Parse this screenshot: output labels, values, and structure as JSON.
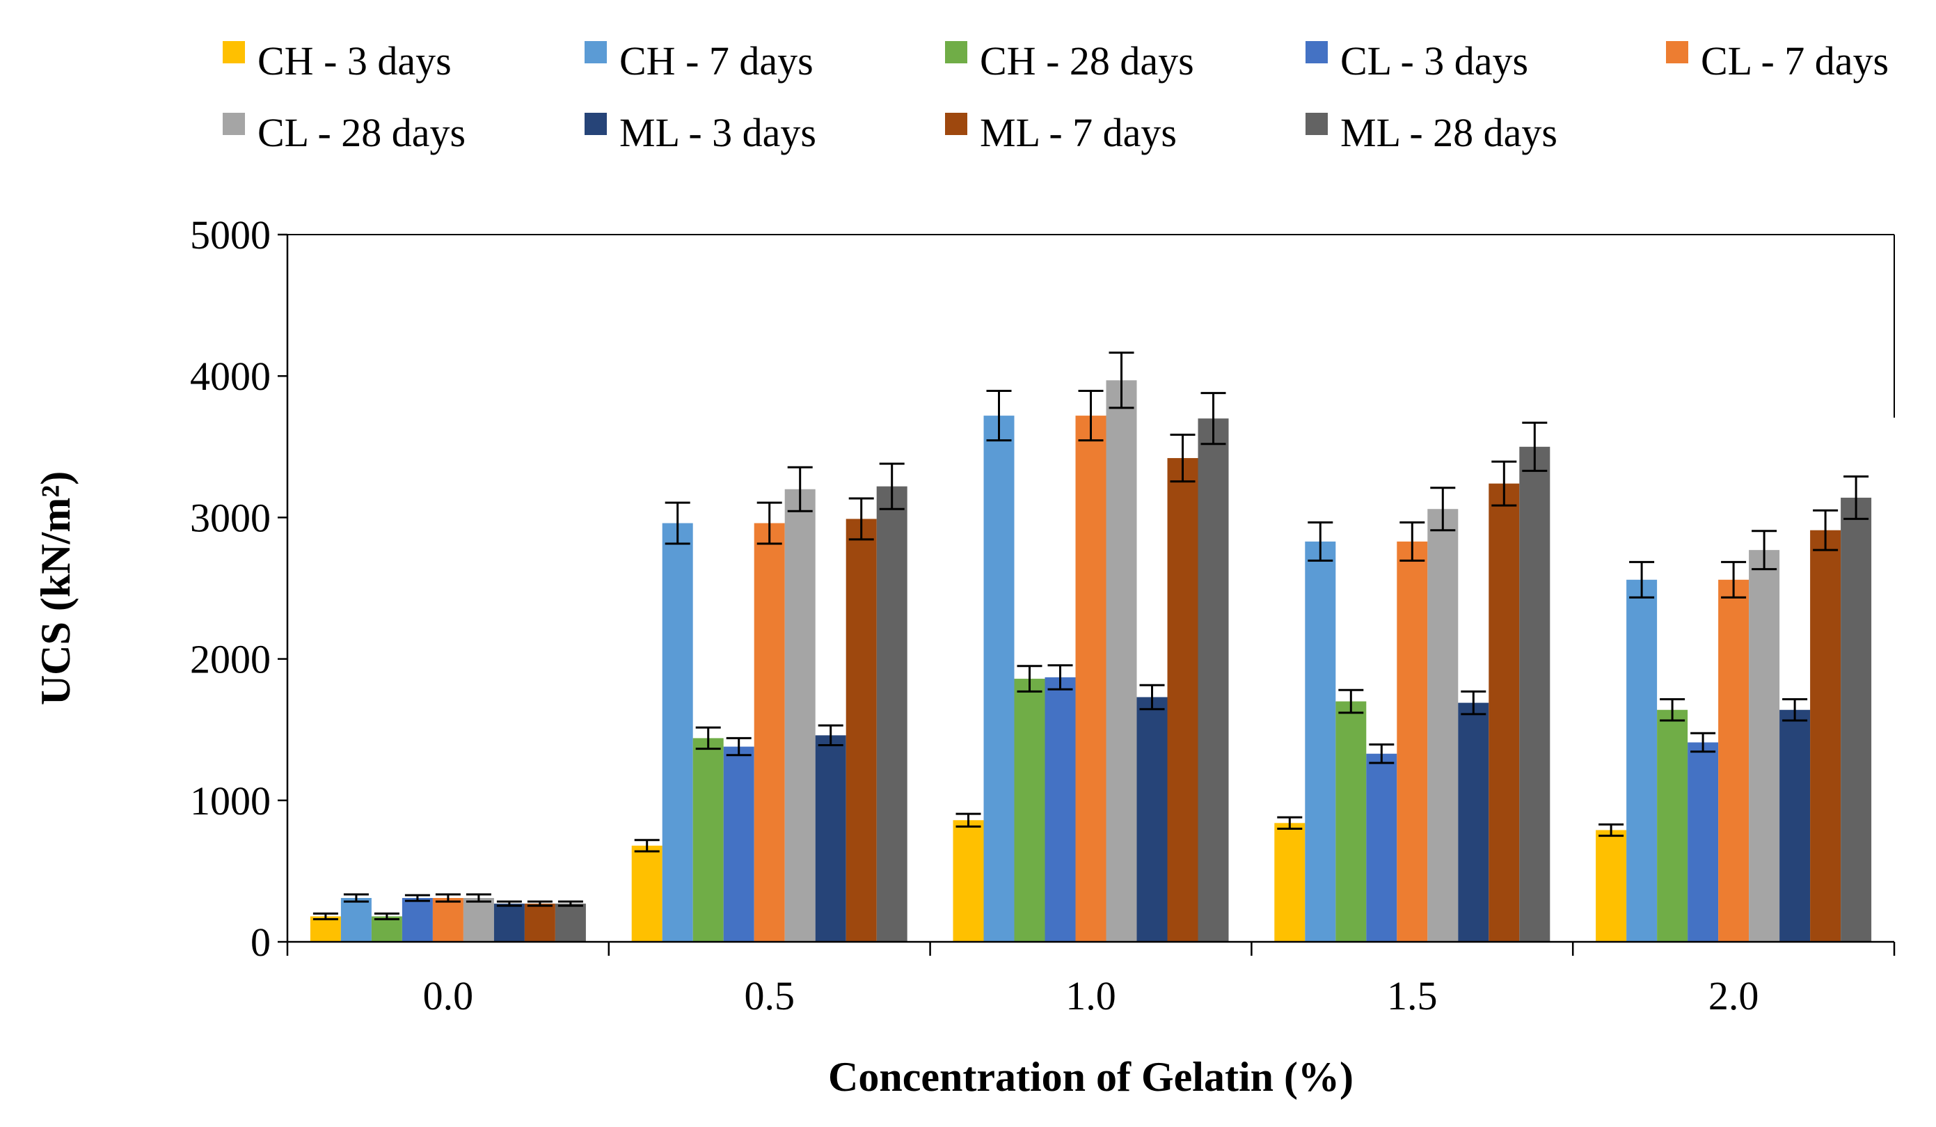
{
  "chart_data": {
    "type": "bar",
    "xlabel": "Concentration of Gelatin (%)",
    "ylabel": "UCS (kN/m²)",
    "ylim": [
      0,
      5000
    ],
    "yticks": [
      "0",
      "1000",
      "2000",
      "3000",
      "4000",
      "5000"
    ],
    "categories": [
      "0.0",
      "0.5",
      "1.0",
      "1.5",
      "2.0"
    ],
    "legend_position": "top",
    "grid": false,
    "series": [
      {
        "name": "CH - 3 days",
        "color": "#FFC000",
        "values": [
          180,
          680,
          860,
          840,
          790
        ],
        "errors": [
          20,
          40,
          45,
          40,
          40
        ]
      },
      {
        "name": "CH - 7 days",
        "color": "#5B9BD5",
        "values": [
          310,
          2960,
          3720,
          2830,
          2560
        ],
        "errors": [
          25,
          145,
          175,
          135,
          125
        ]
      },
      {
        "name": "CH - 28 days",
        "color": "#70AD47",
        "values": [
          180,
          1440,
          1860,
          1700,
          1640
        ],
        "errors": [
          20,
          75,
          90,
          80,
          75
        ]
      },
      {
        "name": "CL - 3 days",
        "color": "#4472C4",
        "values": [
          310,
          1380,
          1870,
          1330,
          1410
        ],
        "errors": [
          20,
          60,
          85,
          65,
          65
        ]
      },
      {
        "name": "CL - 7 days",
        "color": "#ED7D31",
        "values": [
          310,
          2960,
          3720,
          2830,
          2560
        ],
        "errors": [
          25,
          145,
          175,
          135,
          125
        ]
      },
      {
        "name": "CL - 28 days",
        "color": "#A5A5A5",
        "values": [
          310,
          3200,
          3970,
          3060,
          2770
        ],
        "errors": [
          25,
          155,
          195,
          150,
          135
        ]
      },
      {
        "name": "ML - 3 days",
        "color": "#264478",
        "values": [
          270,
          1460,
          1730,
          1690,
          1640
        ],
        "errors": [
          15,
          70,
          85,
          80,
          75
        ]
      },
      {
        "name": "ML - 7 days",
        "color": "#9E480E",
        "values": [
          270,
          2990,
          3420,
          3240,
          2910
        ],
        "errors": [
          15,
          145,
          165,
          155,
          140
        ]
      },
      {
        "name": "ML - 28 days",
        "color": "#636363",
        "values": [
          270,
          3220,
          3700,
          3500,
          3140
        ],
        "errors": [
          15,
          160,
          180,
          170,
          150
        ]
      }
    ]
  }
}
